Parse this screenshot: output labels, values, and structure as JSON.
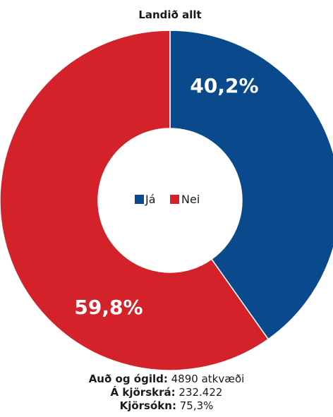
{
  "chart_data": {
    "type": "pie",
    "variant": "donut",
    "title": "Landið allt",
    "categories": [
      "Já",
      "Nei"
    ],
    "values": [
      40.2,
      59.8
    ],
    "value_labels": [
      "40,2%",
      "59,8%"
    ],
    "colors": [
      "#0a4a8c",
      "#d3222a"
    ],
    "legend": {
      "placement": "center",
      "entries": [
        {
          "label": "Já",
          "color": "#0a4a8c"
        },
        {
          "label": "Nei",
          "color": "#d3222a"
        }
      ]
    }
  },
  "footer": {
    "blank_label": "Auð og ógild:",
    "blank_value": "4890 atkvæði",
    "registered_label": "Á kjörskrá:",
    "registered_value": "232.422",
    "turnout_label": "Kjörsókn:",
    "turnout_value": "75,3%"
  }
}
